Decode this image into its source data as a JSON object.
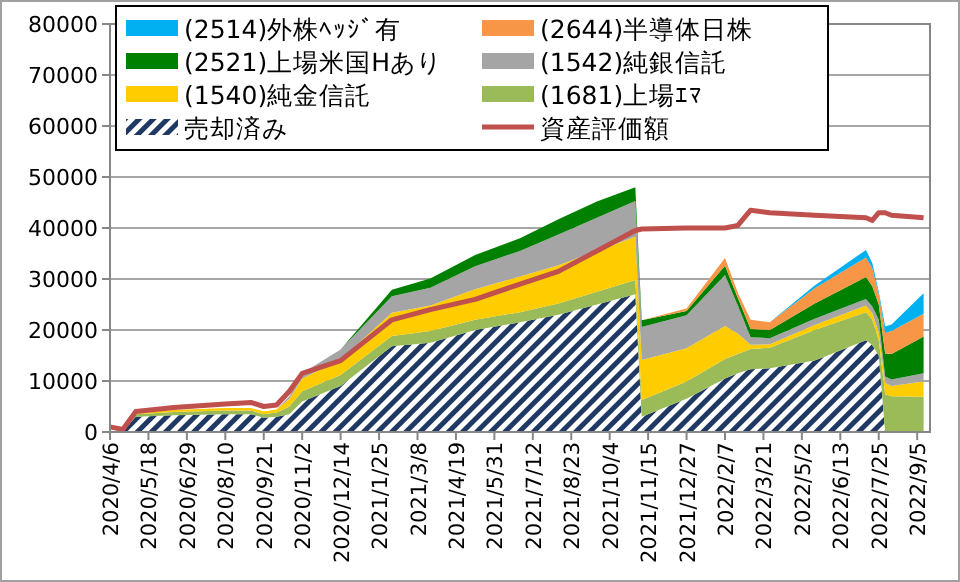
{
  "chart_data": {
    "type": "area",
    "stacked": true,
    "legend": "top",
    "grid": "y",
    "x": [
      "2020-04-06",
      "2020-04-20",
      "2020-05-04",
      "2020-06-15",
      "2020-08-10",
      "2020-09-07",
      "2020-09-21",
      "2020-10-05",
      "2020-10-19",
      "2020-11-02",
      "2020-12-14",
      "2021-02-08",
      "2021-03-22",
      "2021-05-10",
      "2021-06-28",
      "2021-08-09",
      "2021-09-20",
      "2021-11-01",
      "2021-11-08",
      "2021-12-27",
      "2022-02-07",
      "2022-02-21",
      "2022-03-07",
      "2022-03-28",
      "2022-05-16",
      "2022-07-11",
      "2022-07-18",
      "2022-07-25",
      "2022-08-01",
      "2022-08-08",
      "2022-09-12"
    ],
    "xlim": [
      "2020-04-06",
      "2022-09-19"
    ],
    "xticks": [
      {
        "value": "2020-04-06",
        "label": "2020/4/6"
      },
      {
        "value": "2020-05-18",
        "label": "2020/5/18"
      },
      {
        "value": "2020-06-29",
        "label": "2020/6/29"
      },
      {
        "value": "2020-08-10",
        "label": "2020/8/10"
      },
      {
        "value": "2020-09-21",
        "label": "2020/9/21"
      },
      {
        "value": "2020-11-02",
        "label": "2020/11/2"
      },
      {
        "value": "2020-12-14",
        "label": "2020/12/14"
      },
      {
        "value": "2021-01-25",
        "label": "2021/1/25"
      },
      {
        "value": "2021-03-08",
        "label": "2021/3/8"
      },
      {
        "value": "2021-04-19",
        "label": "2021/4/19"
      },
      {
        "value": "2021-05-31",
        "label": "2021/5/31"
      },
      {
        "value": "2021-07-12",
        "label": "2021/7/12"
      },
      {
        "value": "2021-08-23",
        "label": "2021/8/23"
      },
      {
        "value": "2021-10-04",
        "label": "2021/10/4"
      },
      {
        "value": "2021-11-15",
        "label": "2021/11/15"
      },
      {
        "value": "2021-12-27",
        "label": "2021/12/27"
      },
      {
        "value": "2022-02-07",
        "label": "2022/2/7"
      },
      {
        "value": "2022-03-21",
        "label": "2022/3/21"
      },
      {
        "value": "2022-05-02",
        "label": "2022/5/2"
      },
      {
        "value": "2022-06-13",
        "label": "2022/6/13"
      },
      {
        "value": "2022-07-25",
        "label": "2022/7/25"
      },
      {
        "value": "2022-09-05",
        "label": "2022/9/5"
      }
    ],
    "ylim": [
      0,
      80000
    ],
    "yticks": [
      0,
      10000,
      20000,
      30000,
      40000,
      50000,
      60000,
      70000,
      80000
    ],
    "series": [
      {
        "name": "売却済み",
        "color": "#1f3864",
        "values": [
          0,
          0,
          3000,
          3300,
          3500,
          3500,
          2800,
          3000,
          3500,
          6000,
          9000,
          16800,
          17500,
          20000,
          21500,
          23000,
          25000,
          27000,
          3000,
          6500,
          10500,
          11500,
          12300,
          12500,
          14000,
          18000,
          17000,
          15000,
          0,
          0,
          0
        ]
      },
      {
        "name": "(1681)上場ｴﾏ",
        "color": "#9bbb59",
        "values": [
          0,
          0,
          500,
          600,
          700,
          700,
          700,
          800,
          1500,
          2000,
          2200,
          2000,
          2300,
          2000,
          2000,
          2200,
          2500,
          2800,
          3300,
          3400,
          3800,
          3800,
          4000,
          4000,
          6000,
          5500,
          5000,
          3000,
          7400,
          7000,
          6900
        ]
      },
      {
        "name": "(1540)純金信託",
        "color": "#ffcc00",
        "values": [
          0,
          0,
          300,
          400,
          500,
          500,
          500,
          600,
          1500,
          2500,
          3000,
          4600,
          5000,
          6000,
          7000,
          7500,
          8000,
          8500,
          7800,
          6500,
          6500,
          4000,
          800,
          700,
          1000,
          1300,
          1300,
          1500,
          2200,
          2000,
          3000
        ]
      },
      {
        "name": "(1542)純銀信託",
        "color": "#a5a5a5",
        "values": [
          0,
          0,
          0,
          0,
          0,
          0,
          0,
          0,
          500,
          1000,
          2000,
          3200,
          3500,
          4500,
          5000,
          6000,
          6500,
          7000,
          6500,
          6500,
          10000,
          5500,
          1500,
          1200,
          1200,
          1300,
          1300,
          2500,
          1300,
          1300,
          1600
        ]
      },
      {
        "name": "(2521)上場米国Hあり",
        "color": "#008000",
        "values": [
          0,
          0,
          0,
          0,
          0,
          0,
          0,
          0,
          0,
          0,
          0,
          1300,
          1800,
          2200,
          2500,
          3000,
          3200,
          2700,
          1300,
          800,
          1800,
          1500,
          1600,
          1600,
          3000,
          4300,
          4000,
          3000,
          4500,
          5000,
          7200
        ]
      },
      {
        "name": "(2644)半導体日株",
        "color": "#f79646",
        "values": [
          null,
          null,
          null,
          null,
          null,
          null,
          null,
          null,
          null,
          null,
          null,
          null,
          null,
          null,
          null,
          null,
          null,
          null,
          0,
          500,
          1500,
          1000,
          1800,
          1500,
          3000,
          3800,
          3500,
          2000,
          4000,
          4500,
          4500
        ]
      },
      {
        "name": "(2514)外株ﾍｯｼﾞ有",
        "color": "#00b0f0",
        "values": [
          null,
          null,
          null,
          null,
          null,
          null,
          null,
          null,
          null,
          null,
          null,
          null,
          null,
          null,
          null,
          null,
          null,
          null,
          null,
          null,
          null,
          null,
          null,
          0,
          500,
          1500,
          1000,
          500,
          1300,
          1300,
          4000
        ]
      },
      {
        "name": "資産評価額",
        "type": "line",
        "color": "#c0504d",
        "values": [
          1000,
          500,
          4000,
          4800,
          5500,
          5800,
          5000,
          5300,
          8000,
          11500,
          14000,
          22000,
          24000,
          26000,
          29000,
          31500,
          35500,
          39500,
          39800,
          40000,
          40000,
          40500,
          43500,
          43000,
          42500,
          42000,
          41500,
          43000,
          43000,
          42500,
          42000
        ]
      }
    ]
  }
}
